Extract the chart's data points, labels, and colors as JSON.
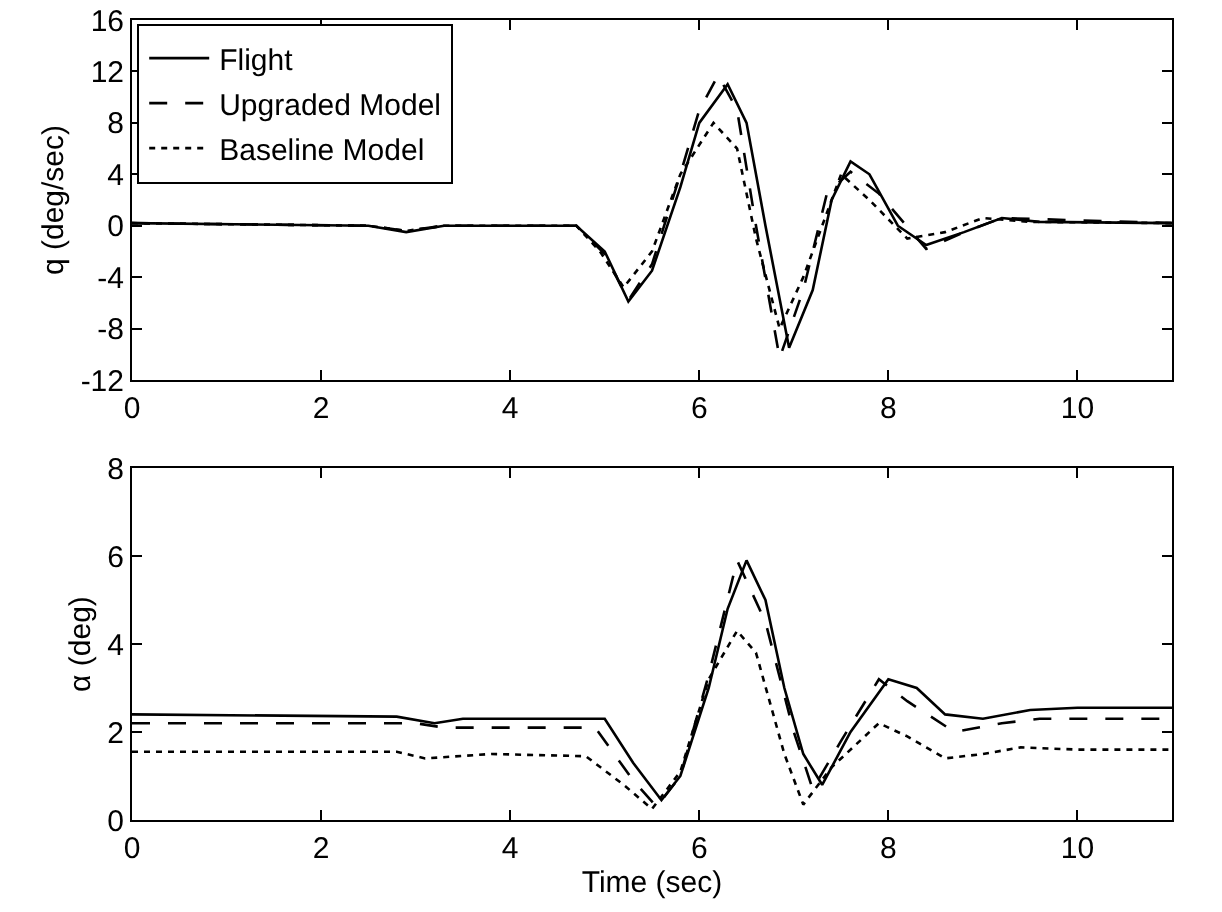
{
  "chart_data": [
    {
      "type": "line",
      "ylabel": "q (deg/sec)",
      "xlim": [
        0,
        11
      ],
      "xticks": [
        0,
        2,
        4,
        6,
        8,
        10
      ],
      "ylim": [
        -12,
        16
      ],
      "yticks": [
        -12,
        -8,
        -4,
        0,
        4,
        8,
        12,
        16
      ],
      "grid": false,
      "legend": "top left",
      "marker": "none",
      "series": [
        {
          "name": "Flight",
          "color": "#000000",
          "line_style": "solid",
          "x": [
            0,
            2.5,
            2.9,
            3.3,
            4.7,
            5.0,
            5.25,
            5.5,
            5.8,
            6.0,
            6.3,
            6.5,
            6.7,
            6.95,
            7.2,
            7.4,
            7.6,
            7.8,
            8.1,
            8.4,
            8.8,
            9.2,
            9.6,
            11
          ],
          "values": [
            0.2,
            0,
            -0.5,
            0,
            0,
            -2,
            -5.9,
            -3.5,
            3,
            8,
            11,
            8,
            0,
            -9.5,
            -5,
            2,
            5,
            4,
            0,
            -1.5,
            -0.5,
            0.6,
            0.3,
            0.2
          ]
        },
        {
          "name": "Upgraded Model",
          "color": "#000000",
          "line_style": "dashed",
          "x": [
            0,
            2.5,
            2.9,
            3.3,
            4.7,
            5.0,
            5.25,
            5.5,
            5.8,
            6.0,
            6.2,
            6.4,
            6.6,
            6.85,
            7.1,
            7.35,
            7.6,
            7.9,
            8.4,
            8.8,
            9.2,
            11
          ],
          "values": [
            0.2,
            0,
            -0.4,
            0,
            0,
            -2.2,
            -5.8,
            -3,
            4,
            9,
            11.7,
            9,
            0,
            -10.3,
            -5,
            2.5,
            4.2,
            2.5,
            -1.8,
            -0.5,
            0.6,
            0.2
          ]
        },
        {
          "name": "Baseline Model",
          "color": "#000000",
          "line_style": "dotted",
          "x": [
            0,
            2.5,
            2.9,
            3.3,
            4.7,
            4.95,
            5.2,
            5.5,
            5.8,
            6.15,
            6.4,
            6.6,
            6.85,
            7.1,
            7.5,
            7.8,
            8.2,
            8.6,
            9.0,
            9.5,
            11
          ],
          "values": [
            0.2,
            0,
            -0.4,
            0,
            0,
            -2,
            -4.8,
            -2,
            4,
            8,
            6,
            -1,
            -8,
            -4,
            4,
            2,
            -1,
            -0.5,
            0.6,
            0.3,
            0.2
          ]
        }
      ]
    },
    {
      "type": "line",
      "ylabel": "α (deg)",
      "xlabel": "Time (sec)",
      "xlim": [
        0,
        11
      ],
      "xticks": [
        0,
        2,
        4,
        6,
        8,
        10
      ],
      "ylim": [
        0,
        8
      ],
      "yticks": [
        0,
        2,
        4,
        6,
        8
      ],
      "grid": false,
      "legend": false,
      "marker": "none",
      "series": [
        {
          "color": "#000000",
          "line_style": "solid",
          "x": [
            0,
            2.8,
            3.2,
            3.5,
            5.0,
            5.3,
            5.6,
            5.8,
            6.1,
            6.3,
            6.5,
            6.7,
            6.9,
            7.1,
            7.3,
            7.6,
            8.0,
            8.3,
            8.6,
            9.0,
            9.5,
            10,
            11
          ],
          "values": [
            2.4,
            2.35,
            2.2,
            2.3,
            2.3,
            1.3,
            0.45,
            1.0,
            3,
            4.8,
            5.9,
            5,
            3,
            1.5,
            0.8,
            2,
            3.2,
            3,
            2.4,
            2.3,
            2.5,
            2.55,
            2.55
          ]
        },
        {
          "color": "#000000",
          "line_style": "dashed",
          "x": [
            0,
            3.0,
            3.3,
            4.9,
            5.3,
            5.55,
            5.8,
            6.1,
            6.4,
            6.7,
            7.0,
            7.2,
            7.5,
            7.9,
            8.2,
            8.7,
            9.2,
            9.6,
            11
          ],
          "values": [
            2.2,
            2.2,
            2.1,
            2.1,
            0.9,
            0.3,
            1.0,
            3.3,
            5.9,
            4.5,
            2.0,
            0.7,
            1.8,
            3.2,
            2.7,
            2.0,
            2.2,
            2.3,
            2.3
          ]
        },
        {
          "color": "#000000",
          "line_style": "dotted",
          "x": [
            0,
            2.8,
            3.1,
            3.8,
            4.8,
            5.2,
            5.5,
            5.8,
            6.1,
            6.4,
            6.6,
            6.9,
            7.1,
            7.4,
            7.9,
            8.2,
            8.6,
            9.0,
            9.4,
            10,
            11
          ],
          "values": [
            1.55,
            1.55,
            1.4,
            1.5,
            1.45,
            0.8,
            0.25,
            1.1,
            3.2,
            4.3,
            3.8,
            1.5,
            0.35,
            1.2,
            2.2,
            1.9,
            1.4,
            1.5,
            1.65,
            1.6,
            1.6
          ]
        }
      ]
    }
  ]
}
